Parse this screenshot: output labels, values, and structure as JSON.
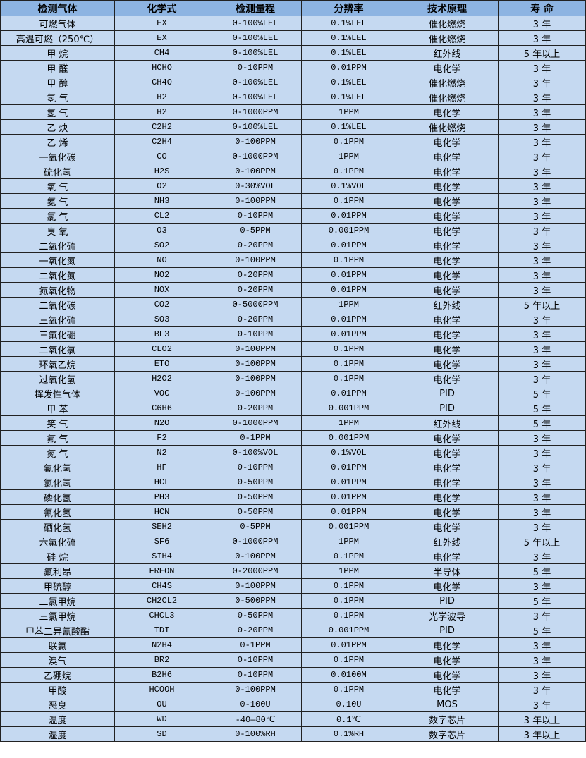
{
  "table": {
    "headers": [
      "检测气体",
      "化学式",
      "检测量程",
      "分辨率",
      "技术原理",
      "寿 命"
    ],
    "rows": [
      [
        "可燃气体",
        "EX",
        "0-100%LEL",
        "0.1%LEL",
        "催化燃烧",
        "3 年"
      ],
      [
        "高温可燃（250℃）",
        "EX",
        "0-100%LEL",
        "0.1%LEL",
        "催化燃烧",
        "3 年"
      ],
      [
        "甲 烷",
        "CH4",
        "0-100%LEL",
        "0.1%LEL",
        "红外线",
        "5 年以上"
      ],
      [
        "甲 醛",
        "HCHO",
        "0-10PPM",
        "0.01PPM",
        "电化学",
        "3 年"
      ],
      [
        "甲 醇",
        "CH4O",
        "0-100%LEL",
        "0.1%LEL",
        "催化燃烧",
        "3 年"
      ],
      [
        "氢 气",
        "H2",
        "0-100%LEL",
        "0.1%LEL",
        "催化燃烧",
        "3 年"
      ],
      [
        "氢 气",
        "H2",
        "0-1000PPM",
        "1PPM",
        "电化学",
        "3 年"
      ],
      [
        "乙 炔",
        "C2H2",
        "0-100%LEL",
        "0.1%LEL",
        "催化燃烧",
        "3 年"
      ],
      [
        "乙 烯",
        "C2H4",
        "0-100PPM",
        "0.1PPM",
        "电化学",
        "3 年"
      ],
      [
        "一氧化碳",
        "CO",
        "0-1000PPM",
        "1PPM",
        "电化学",
        "3 年"
      ],
      [
        "硫化氢",
        "H2S",
        "0-100PPM",
        "0.1PPM",
        "电化学",
        "3 年"
      ],
      [
        "氧 气",
        "O2",
        "0-30%VOL",
        "0.1%VOL",
        "电化学",
        "3 年"
      ],
      [
        "氨 气",
        "NH3",
        "0-100PPM",
        "0.1PPM",
        "电化学",
        "3 年"
      ],
      [
        "氯 气",
        "CL2",
        "0-10PPM",
        "0.01PPM",
        "电化学",
        "3 年"
      ],
      [
        "臭 氧",
        "O3",
        "0-5PPM",
        "0.001PPM",
        "电化学",
        "3 年"
      ],
      [
        "二氧化硫",
        "SO2",
        "0-20PPM",
        "0.01PPM",
        "电化学",
        "3 年"
      ],
      [
        "一氧化氮",
        "NO",
        "0-100PPM",
        "0.1PPM",
        "电化学",
        "3 年"
      ],
      [
        "二氧化氮",
        "NO2",
        "0-20PPM",
        "0.01PPM",
        "电化学",
        "3 年"
      ],
      [
        "氮氧化物",
        "NOX",
        "0-20PPM",
        "0.01PPM",
        "电化学",
        "3 年"
      ],
      [
        "二氧化碳",
        "CO2",
        "0-5000PPM",
        "1PPM",
        "红外线",
        "5 年以上"
      ],
      [
        "三氧化硫",
        "SO3",
        "0-20PPM",
        "0.01PPM",
        "电化学",
        "3 年"
      ],
      [
        "三氟化硼",
        "BF3",
        "0-10PPM",
        "0.01PPM",
        "电化学",
        "3 年"
      ],
      [
        "二氧化氯",
        "CLO2",
        "0-100PPM",
        "0.1PPM",
        "电化学",
        "3 年"
      ],
      [
        "环氧乙烷",
        "ETO",
        "0-100PPM",
        "0.1PPM",
        "电化学",
        "3 年"
      ],
      [
        "过氧化氢",
        "H2O2",
        "0-100PPM",
        "0.1PPM",
        "电化学",
        "3 年"
      ],
      [
        "挥发性气体",
        "VOC",
        "0-100PPM",
        "0.01PPM",
        "PID",
        "5 年"
      ],
      [
        "甲 苯",
        "C6H6",
        "0-20PPM",
        "0.001PPM",
        "PID",
        "5 年"
      ],
      [
        "笑 气",
        "N2O",
        "0-1000PPM",
        "1PPM",
        "红外线",
        "5 年"
      ],
      [
        "氟 气",
        "F2",
        "0-1PPM",
        "0.001PPM",
        "电化学",
        "3 年"
      ],
      [
        "氮 气",
        "N2",
        "0-100%VOL",
        "0.1%VOL",
        "电化学",
        "3 年"
      ],
      [
        "氟化氢",
        "HF",
        "0-10PPM",
        "0.01PPM",
        "电化学",
        "3 年"
      ],
      [
        "氯化氢",
        "HCL",
        "0-50PPM",
        "0.01PPM",
        "电化学",
        "3 年"
      ],
      [
        "磷化氢",
        "PH3",
        "0-50PPM",
        "0.01PPM",
        "电化学",
        "3 年"
      ],
      [
        "氰化氢",
        "HCN",
        "0-50PPM",
        "0.01PPM",
        "电化学",
        "3 年"
      ],
      [
        "硒化氢",
        "SEH2",
        "0-5PPM",
        "0.001PPM",
        "电化学",
        "3 年"
      ],
      [
        "六氟化硫",
        "SF6",
        "0-1000PPM",
        "1PPM",
        "红外线",
        "5 年以上"
      ],
      [
        "硅 烷",
        "SIH4",
        "0-100PPM",
        "0.1PPM",
        "电化学",
        "3 年"
      ],
      [
        "氟利昂",
        "FREON",
        "0-2000PPM",
        "1PPM",
        "半导体",
        "5 年"
      ],
      [
        "甲硫醇",
        "CH4S",
        "0-100PPM",
        "0.1PPM",
        "电化学",
        "3 年"
      ],
      [
        "二氯甲烷",
        "CH2CL2",
        "0-500PPM",
        "0.1PPM",
        "PID",
        "5 年"
      ],
      [
        "三氯甲烷",
        "CHCL3",
        "0-50PPM",
        "0.1PPM",
        "光学波导",
        "3 年"
      ],
      [
        "甲苯二异氰酸酯",
        "TDI",
        "0-20PPM",
        "0.001PPM",
        "PID",
        "5 年"
      ],
      [
        "联氨",
        "N2H4",
        "0-1PPM",
        "0.01PPM",
        "电化学",
        "3 年"
      ],
      [
        "溴气",
        "BR2",
        "0-10PPM",
        "0.1PPM",
        "电化学",
        "3 年"
      ],
      [
        "乙硼烷",
        "B2H6",
        "0-10PPM",
        "0.0100M",
        "电化学",
        "3 年"
      ],
      [
        "甲酸",
        "HCOOH",
        "0-100PPM",
        "0.1PPM",
        "电化学",
        "3 年"
      ],
      [
        "恶臭",
        "OU",
        "0-100U",
        "0.10U",
        "MOS",
        "3 年"
      ],
      [
        "温度",
        "WD",
        "-40—80℃",
        "0.1℃",
        "数字芯片",
        "3 年以上"
      ],
      [
        "湿度",
        "SD",
        "0-100%RH",
        "0.1%RH",
        "数字芯片",
        "3 年以上"
      ]
    ]
  },
  "colors": {
    "header_bg": "#8db4e2",
    "cell_bg": "#c5d9f1",
    "border": "#222222"
  }
}
